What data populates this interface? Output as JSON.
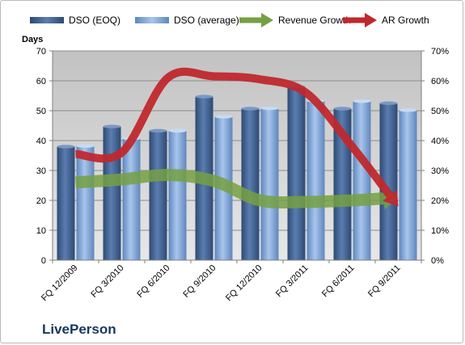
{
  "chart_data": {
    "type": "bar",
    "categories": [
      "FQ 12/2009",
      "FQ 3/2010",
      "FQ 6/2010",
      "FQ 9/2010",
      "FQ 12/2010",
      "FQ 3/2011",
      "FQ 6/2011",
      "FQ 9/2011"
    ],
    "series": [
      {
        "name": "DSO (EOQ)",
        "values": [
          38,
          44.7,
          43.3,
          54.7,
          50.7,
          58,
          50.7,
          52.5
        ],
        "color": "#3f5f8f"
      },
      {
        "name": "DSO (average)",
        "values": [
          38.2,
          40.7,
          43.3,
          48,
          50.8,
          53.3,
          53.2,
          50.2
        ],
        "color": "#7ea3d6"
      },
      {
        "name": "Revenue Growth",
        "type": "line",
        "axis": "right",
        "values": [
          0.26,
          0.27,
          0.285,
          0.265,
          0.2,
          0.195,
          0.2,
          0.21
        ],
        "color": "#76a043"
      },
      {
        "name": "AR Growth",
        "type": "line",
        "axis": "right",
        "values": [
          0.355,
          0.36,
          0.61,
          0.615,
          0.605,
          0.56,
          0.38,
          0.18
        ],
        "color": "#c0282d"
      }
    ],
    "ylabel": "Days",
    "ylim": [
      0,
      70
    ],
    "y_ticks": [
      "0",
      "10",
      "20",
      "30",
      "40",
      "50",
      "60",
      "70"
    ],
    "y2lim": [
      0,
      0.7
    ],
    "y2_ticks": [
      "0%",
      "10%",
      "20%",
      "30%",
      "40%",
      "50%",
      "60%",
      "70%"
    ],
    "grid": true,
    "legend_position": "top"
  },
  "brand": "LivePerson"
}
